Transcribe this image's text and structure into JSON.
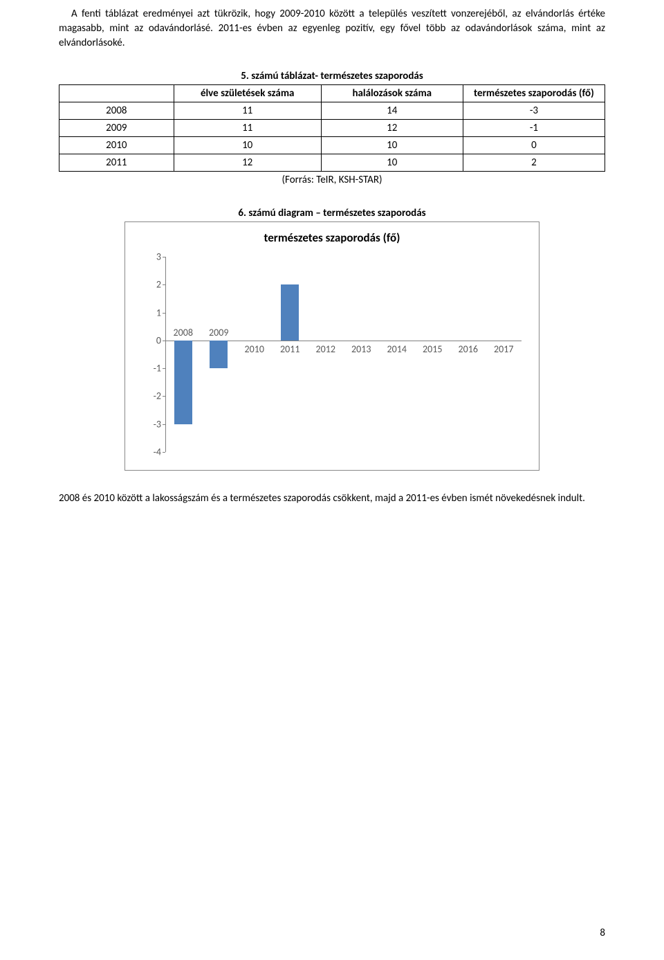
{
  "intro_paragraph": "A fenti táblázat eredményei azt tükrözik, hogy 2009-2010 között a település veszített vonzerejéből, az elvándorlás értéke magasabb, mint az odavándorlásé. 2011-es évben az egyenleg pozitív, egy fővel több az odavándorlások száma, mint az elvándorlásoké.",
  "table_title": "5. számú táblázat- természetes szaporodás",
  "table": {
    "headers": [
      "",
      "élve születések száma",
      "halálozások száma",
      "természetes szaporodás (fő)"
    ],
    "rows": [
      [
        "2008",
        "11",
        "14",
        "-3"
      ],
      [
        "2009",
        "11",
        "12",
        "-1"
      ],
      [
        "2010",
        "10",
        "10",
        "0"
      ],
      [
        "2011",
        "12",
        "10",
        "2"
      ]
    ]
  },
  "table_source": "(Forrás: TeIR, KSH-STAR)",
  "chart_section_title": "6. számú diagram – természetes szaporodás",
  "chart": {
    "inner_title": "természetes szaporodás (fő)",
    "type": "bar",
    "y_ticks": [
      3,
      2,
      1,
      0,
      -1,
      -2,
      -3,
      -4
    ],
    "ylim": [
      -4,
      3
    ],
    "x_labels": [
      "2008",
      "2009",
      "2010",
      "2011",
      "2012",
      "2013",
      "2014",
      "2015",
      "2016",
      "2017"
    ],
    "values": [
      -3,
      -1,
      0,
      2,
      0,
      0,
      0,
      0,
      0,
      0
    ],
    "bar_color": "#4f81bd",
    "axis_color": "#808080",
    "label_color": "#595959",
    "background_color": "#ffffff",
    "y_label_fontsize": 14,
    "x_label_fontsize": 14,
    "title_fontsize": 17
  },
  "closing_paragraph": "2008 és 2010 között a lakosságszám és a természetes szaporodás csökkent, majd a 2011-es évben ismét növekedésnek indult.",
  "page_number": "8"
}
